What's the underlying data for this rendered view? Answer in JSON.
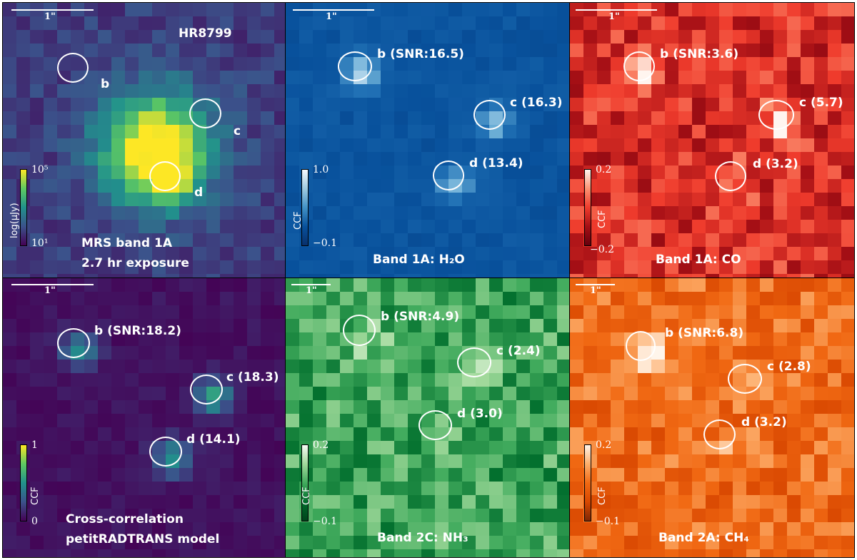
{
  "panels": [
    {
      "id": "p1",
      "star_label": "HR8799",
      "scale_label": "1\"",
      "caption_lines": [
        "MRS band 1A",
        "2.7 hr exposure"
      ],
      "colorbar": {
        "label": "log(μJy)",
        "top": "10⁵",
        "bottom": "10¹",
        "colormap": "viridis"
      },
      "planets": [
        {
          "name": "b",
          "label": "b"
        },
        {
          "name": "c",
          "label": "c"
        },
        {
          "name": "d",
          "label": "d"
        }
      ]
    },
    {
      "id": "p2",
      "scale_label": "1\"",
      "caption": "Band 1A: H₂O",
      "colorbar": {
        "label": "CCF",
        "top": "1.0",
        "bottom": "−0.1",
        "colormap": "blues"
      },
      "planets": [
        {
          "name": "b",
          "label": "b (SNR:16.5)"
        },
        {
          "name": "c",
          "label": "c (16.3)"
        },
        {
          "name": "d",
          "label": "d (13.4)"
        }
      ]
    },
    {
      "id": "p3",
      "scale_label": "1\"",
      "caption": "Band 1A: CO",
      "colorbar": {
        "label": "CCF",
        "top": "0.2",
        "bottom": "−0.2",
        "colormap": "reds"
      },
      "planets": [
        {
          "name": "b",
          "label": "b (SNR:3.6)"
        },
        {
          "name": "c",
          "label": "c (5.7)"
        },
        {
          "name": "d",
          "label": "d (3.2)"
        }
      ]
    },
    {
      "id": "p4",
      "scale_label": "1\"",
      "caption_lines": [
        "Cross-correlation",
        "petitRADTRANS model"
      ],
      "colorbar": {
        "label": "CCF",
        "top": "1",
        "bottom": "0",
        "colormap": "viridis"
      },
      "planets": [
        {
          "name": "b",
          "label": "b (SNR:18.2)"
        },
        {
          "name": "c",
          "label": "c (18.3)"
        },
        {
          "name": "d",
          "label": "d (14.1)"
        }
      ]
    },
    {
      "id": "p5",
      "scale_label": "1\"",
      "caption": "Band 2C: NH₃",
      "colorbar": {
        "label": "CCF",
        "top": "0.2",
        "bottom": "−0.1",
        "colormap": "greens"
      },
      "planets": [
        {
          "name": "b",
          "label": "b (SNR:4.9)"
        },
        {
          "name": "c",
          "label": "c (2.4)"
        },
        {
          "name": "d",
          "label": "d (3.0)"
        }
      ]
    },
    {
      "id": "p6",
      "scale_label": "1\"",
      "caption": "Band 2A: CH₄",
      "colorbar": {
        "label": "CCF",
        "top": "0.2",
        "bottom": "−0.1",
        "colormap": "oranges"
      },
      "planets": [
        {
          "name": "b",
          "label": "b (SNR:6.8)"
        },
        {
          "name": "c",
          "label": "c (2.8)"
        },
        {
          "name": "d",
          "label": "d (3.2)"
        }
      ]
    }
  ]
}
